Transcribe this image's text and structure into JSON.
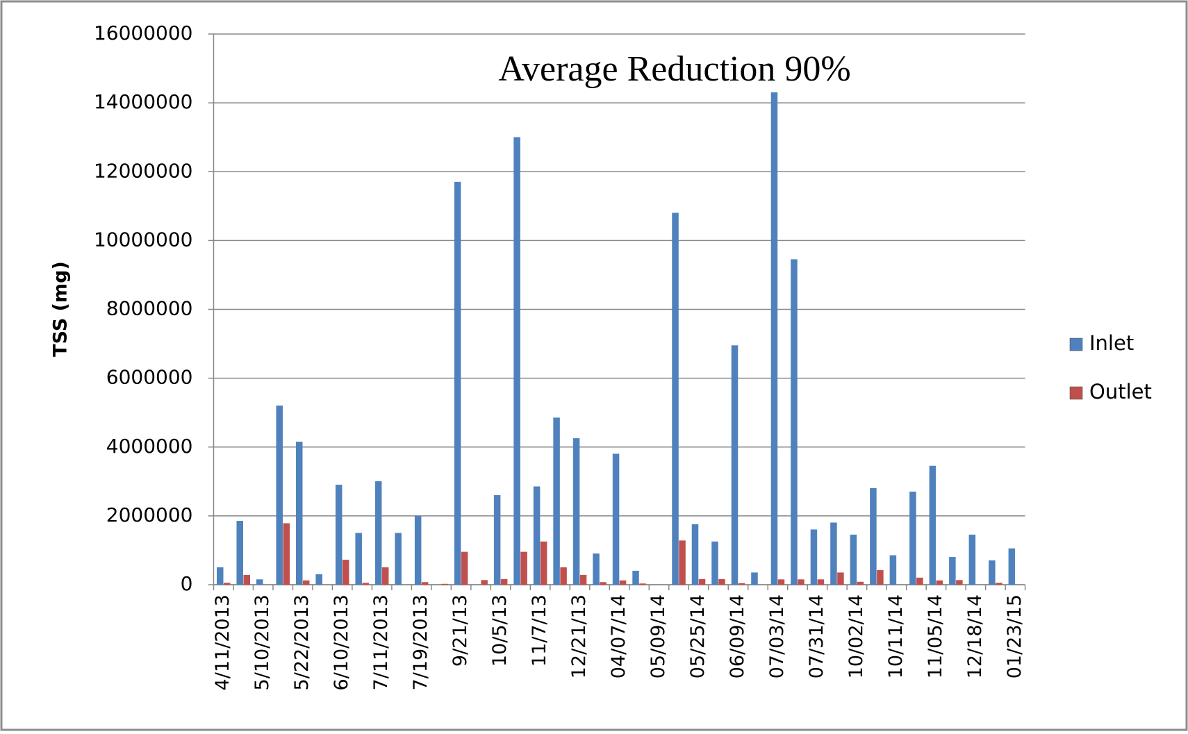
{
  "chart_data": {
    "type": "bar",
    "annotation": "Average Reduction 90%",
    "y_label": "TSS (mg)",
    "categories": [
      "4/11/2013",
      null,
      "5/10/2013",
      null,
      "5/22/2013",
      null,
      "6/10/2013",
      null,
      "7/11/2013",
      null,
      "7/19/2013",
      null,
      "9/21/13",
      null,
      "10/5/13",
      null,
      "11/7/13",
      null,
      "12/21/13",
      null,
      "04/07/14",
      null,
      "05/09/14",
      null,
      "05/25/14",
      null,
      "06/09/14",
      null,
      "07/03/14",
      null,
      "07/31/14",
      null,
      "10/02/14",
      null,
      "10/11/14",
      null,
      "11/05/14",
      null,
      "12/18/14",
      null,
      "01/23/15"
    ],
    "series": [
      {
        "name": "Inlet",
        "color": "#4f81bd",
        "values": [
          500000,
          1850000,
          150000,
          5200000,
          4150000,
          300000,
          2900000,
          1500000,
          3000000,
          1500000,
          2000000,
          0,
          11700000,
          0,
          2600000,
          13000000,
          2850000,
          4850000,
          4250000,
          900000,
          3800000,
          400000,
          0,
          10800000,
          1750000,
          1250000,
          6950000,
          350000,
          14300000,
          9450000,
          1600000,
          1800000,
          1450000,
          2800000,
          850000,
          2700000,
          3450000,
          800000,
          1450000,
          700000,
          1050000
        ]
      },
      {
        "name": "Outlet",
        "color": "#c0504d",
        "values": [
          50000,
          280000,
          0,
          1780000,
          120000,
          0,
          720000,
          50000,
          500000,
          0,
          70000,
          20000,
          950000,
          130000,
          160000,
          950000,
          1250000,
          500000,
          280000,
          70000,
          120000,
          30000,
          0,
          1280000,
          160000,
          160000,
          40000,
          0,
          150000,
          150000,
          150000,
          350000,
          80000,
          420000,
          0,
          200000,
          120000,
          130000,
          0,
          50000,
          0
        ]
      }
    ],
    "ylim": [
      0,
      16000000
    ],
    "yticks": [
      0,
      2000000,
      4000000,
      6000000,
      8000000,
      10000000,
      12000000,
      14000000,
      16000000
    ],
    "grid": true,
    "legend": "right"
  }
}
